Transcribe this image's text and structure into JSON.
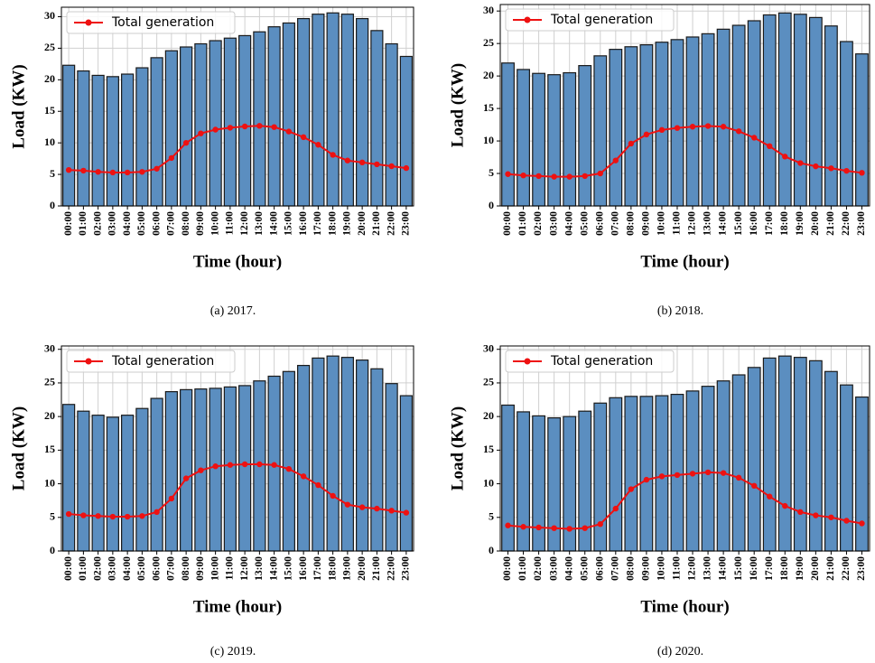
{
  "chart_data": [
    {
      "type": "bar",
      "caption": "(a)  2017.",
      "xlabel": "Time (hour)",
      "ylabel": "Load (KW)",
      "categories": [
        "00:00",
        "01:00",
        "02:00",
        "03:00",
        "04:00",
        "05:00",
        "06:00",
        "07:00",
        "08:00",
        "09:00",
        "10:00",
        "11:00",
        "12:00",
        "13:00",
        "14:00",
        "15:00",
        "16:00",
        "17:00",
        "18:00",
        "19:00",
        "20:00",
        "21:00",
        "22:00",
        "23:00"
      ],
      "series": [
        {
          "type": "bar",
          "color": "#5b8ec0",
          "values": [
            22.3,
            21.4,
            20.7,
            20.5,
            20.9,
            21.9,
            23.5,
            24.6,
            25.2,
            25.7,
            26.2,
            26.6,
            27.0,
            27.6,
            28.4,
            29.0,
            29.7,
            30.4,
            30.6,
            30.4,
            29.7,
            27.8,
            25.7,
            23.7
          ]
        },
        {
          "type": "line",
          "name": "Total generation",
          "color": "#ee1111",
          "values": [
            5.7,
            5.6,
            5.4,
            5.3,
            5.3,
            5.4,
            5.9,
            7.6,
            10.0,
            11.5,
            12.1,
            12.4,
            12.6,
            12.7,
            12.5,
            11.8,
            10.9,
            9.7,
            8.1,
            7.2,
            6.9,
            6.6,
            6.3,
            6.0
          ]
        }
      ],
      "ylim": [
        0,
        31.5
      ],
      "yticks": [
        0,
        5,
        10,
        15,
        20,
        25,
        30
      ],
      "grid": true,
      "legend": "upper left"
    },
    {
      "type": "bar",
      "caption": "(b)  2018.",
      "xlabel": "Time (hour)",
      "ylabel": "Load (KW)",
      "categories": [
        "00:00",
        "01:00",
        "02:00",
        "03:00",
        "04:00",
        "05:00",
        "06:00",
        "07:00",
        "08:00",
        "09:00",
        "10:00",
        "11:00",
        "12:00",
        "13:00",
        "14:00",
        "15:00",
        "16:00",
        "17:00",
        "18:00",
        "19:00",
        "20:00",
        "21:00",
        "22:00",
        "23:00"
      ],
      "series": [
        {
          "type": "bar",
          "color": "#5b8ec0",
          "values": [
            22.0,
            21.0,
            20.4,
            20.2,
            20.5,
            21.6,
            23.1,
            24.1,
            24.5,
            24.8,
            25.2,
            25.6,
            26.0,
            26.5,
            27.2,
            27.8,
            28.5,
            29.4,
            29.7,
            29.5,
            29.0,
            27.7,
            25.3,
            23.4
          ]
        },
        {
          "type": "line",
          "name": "Total generation",
          "color": "#ee1111",
          "values": [
            4.9,
            4.7,
            4.6,
            4.5,
            4.5,
            4.6,
            5.0,
            7.0,
            9.6,
            11.0,
            11.7,
            12.0,
            12.2,
            12.3,
            12.2,
            11.5,
            10.5,
            9.2,
            7.6,
            6.6,
            6.1,
            5.8,
            5.4,
            5.1
          ]
        }
      ],
      "ylim": [
        0,
        31
      ],
      "yticks": [
        0,
        5,
        10,
        15,
        20,
        25,
        30
      ],
      "grid": true,
      "legend": "upper left"
    },
    {
      "type": "bar",
      "caption": "(c)  2019.",
      "xlabel": "Time (hour)",
      "ylabel": "Load (KW)",
      "categories": [
        "00:00",
        "01:00",
        "02:00",
        "03:00",
        "04:00",
        "05:00",
        "06:00",
        "07:00",
        "08:00",
        "09:00",
        "10:00",
        "11:00",
        "12:00",
        "13:00",
        "14:00",
        "15:00",
        "16:00",
        "17:00",
        "18:00",
        "19:00",
        "20:00",
        "21:00",
        "22:00",
        "23:00"
      ],
      "series": [
        {
          "type": "bar",
          "color": "#5b8ec0",
          "values": [
            21.8,
            20.8,
            20.2,
            19.9,
            20.2,
            21.2,
            22.7,
            23.7,
            24.0,
            24.1,
            24.2,
            24.4,
            24.6,
            25.3,
            26.0,
            26.7,
            27.6,
            28.7,
            29.0,
            28.8,
            28.4,
            27.1,
            24.9,
            23.1
          ]
        },
        {
          "type": "line",
          "name": "Total generation",
          "color": "#ee1111",
          "values": [
            5.5,
            5.3,
            5.2,
            5.1,
            5.1,
            5.2,
            5.8,
            7.8,
            10.8,
            12.0,
            12.6,
            12.8,
            12.9,
            12.9,
            12.8,
            12.2,
            11.1,
            9.8,
            8.2,
            6.9,
            6.5,
            6.3,
            6.0,
            5.7
          ]
        }
      ],
      "ylim": [
        0,
        30.5
      ],
      "yticks": [
        0,
        5,
        10,
        15,
        20,
        25,
        30
      ],
      "grid": true,
      "legend": "upper left"
    },
    {
      "type": "bar",
      "caption": "(d)  2020.",
      "xlabel": "Time (hour)",
      "ylabel": "Load (KW)",
      "categories": [
        "00:00",
        "01:00",
        "02:00",
        "03:00",
        "04:00",
        "05:00",
        "06:00",
        "07:00",
        "08:00",
        "09:00",
        "10:00",
        "11:00",
        "12:00",
        "13:00",
        "14:00",
        "15:00",
        "16:00",
        "17:00",
        "18:00",
        "19:00",
        "20:00",
        "21:00",
        "22:00",
        "23:00"
      ],
      "series": [
        {
          "type": "bar",
          "color": "#5b8ec0",
          "values": [
            21.7,
            20.7,
            20.1,
            19.8,
            20.0,
            20.8,
            22.0,
            22.8,
            23.0,
            23.0,
            23.1,
            23.3,
            23.8,
            24.5,
            25.3,
            26.2,
            27.3,
            28.7,
            29.0,
            28.8,
            28.3,
            26.7,
            24.7,
            22.9
          ]
        },
        {
          "type": "line",
          "name": "Total generation",
          "color": "#ee1111",
          "values": [
            3.8,
            3.6,
            3.5,
            3.4,
            3.3,
            3.4,
            4.0,
            6.3,
            9.2,
            10.6,
            11.1,
            11.3,
            11.5,
            11.7,
            11.6,
            10.9,
            9.7,
            8.1,
            6.7,
            5.8,
            5.3,
            5.0,
            4.5,
            4.1
          ]
        }
      ],
      "ylim": [
        0,
        30.5
      ],
      "yticks": [
        0,
        5,
        10,
        15,
        20,
        25,
        30
      ],
      "grid": true,
      "legend": "upper left"
    }
  ]
}
